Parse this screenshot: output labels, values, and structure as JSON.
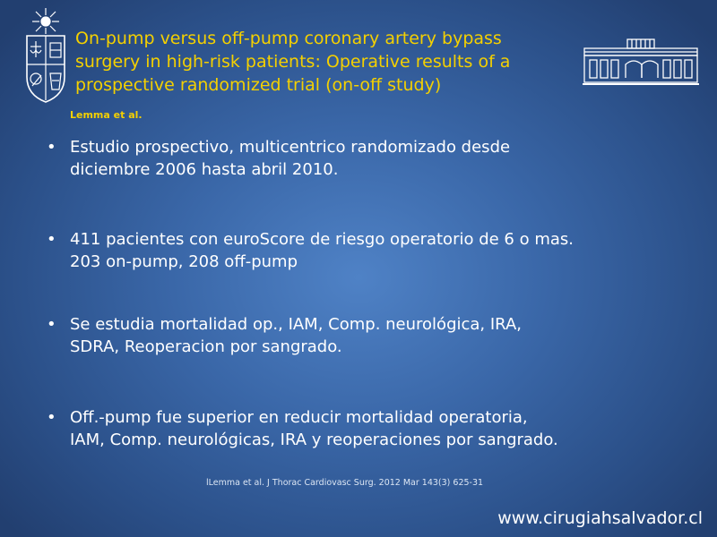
{
  "slide": {
    "title_lines": [
      "On-pump versus off-pump coronary artery bypass",
      "surgery in high-risk patients: Operative results of a",
      "prospective randomized trial (on-off study)"
    ],
    "authors": "Lemma et al.",
    "bullets": [
      {
        "lines": [
          "Estudio prospectivo, multicentrico randomizado desde",
          "diciembre 2006 hasta  abril 2010."
        ]
      },
      {
        "lines": [
          "411 pacientes con euroScore de riesgo operatorio de 6 o mas.",
          "203 on-pump, 208 off-pump"
        ]
      },
      {
        "lines": [
          "Se estudia mortalidad op., IAM, Comp. neurológica, IRA,",
          "SDRA, Reoperacion por sangrado."
        ]
      },
      {
        "lines": [
          "Off.-pump fue superior en reducir mortalidad operatoria,",
          "IAM, Comp. neurológicas, IRA y reoperaciones por sangrado."
        ]
      }
    ],
    "bullet_symbol": "•",
    "citation": "lLemma et al. J Thorac Cardiovasc Surg. 2012 Mar 143(3) 625-31",
    "website": "www.cirugiahsalvador.cl"
  },
  "icons": {
    "left_logo": "university-crest-icon",
    "right_logo": "hospital-building-icon"
  },
  "colors": {
    "title": "#f4d000",
    "body_text": "#ffffff",
    "background_center": "#4f82c6",
    "background_edge": "#223f70"
  }
}
